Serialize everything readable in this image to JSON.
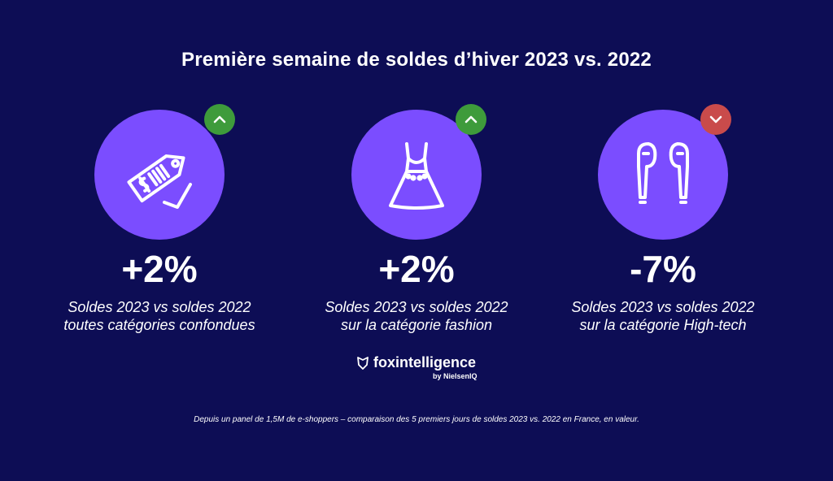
{
  "title": "Première semaine de soldes d’hiver 2023 vs. 2022",
  "colors": {
    "background": "#0d0d55",
    "circle": "#7b4dff",
    "up": "#3e9b3b",
    "down": "#c94b4b"
  },
  "stats": [
    {
      "icon": "price-tag-icon",
      "trend": "up",
      "value": "+2%",
      "line1": "Soldes 2023 vs soldes 2022",
      "line2": "toutes catégories confondues"
    },
    {
      "icon": "dress-icon",
      "trend": "up",
      "value": "+2%",
      "line1": "Soldes 2023 vs soldes 2022",
      "line2": "sur la catégorie fashion"
    },
    {
      "icon": "earbuds-icon",
      "trend": "down",
      "value": "-7%",
      "line1": "Soldes 2023 vs soldes 2022",
      "line2": "sur la catégorie High-tech"
    }
  ],
  "brand": {
    "name": "foxintelligence",
    "sub": "by NielsenIQ"
  },
  "footnote": "Depuis un panel de 1,5M de e-shoppers – comparaison des 5 premiers jours de soldes 2023 vs. 2022 en France, en valeur."
}
